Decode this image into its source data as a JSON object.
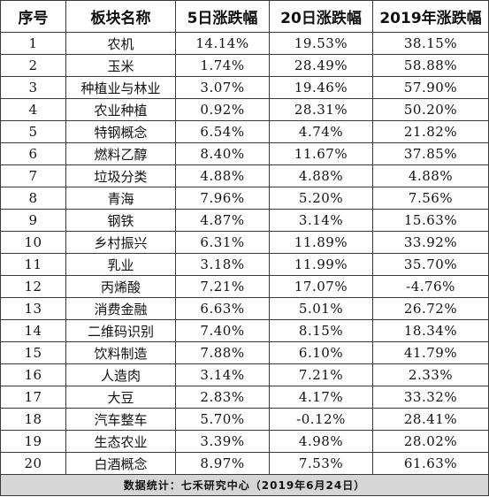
{
  "table": {
    "headers": [
      "序号",
      "板块名称",
      "5日涨跌幅",
      "20日涨跌幅",
      "2019年涨跌幅"
    ],
    "rows": [
      [
        "1",
        "农机",
        "14.14%",
        "19.53%",
        "38.15%"
      ],
      [
        "2",
        "玉米",
        "1.74%",
        "28.49%",
        "58.88%"
      ],
      [
        "3",
        "种植业与林业",
        "3.07%",
        "19.46%",
        "57.90%"
      ],
      [
        "4",
        "农业种植",
        "0.92%",
        "28.31%",
        "50.20%"
      ],
      [
        "5",
        "特钢概念",
        "6.54%",
        "4.74%",
        "21.82%"
      ],
      [
        "6",
        "燃料乙醇",
        "8.40%",
        "11.67%",
        "37.85%"
      ],
      [
        "7",
        "垃圾分类",
        "4.88%",
        "4.88%",
        "4.88%"
      ],
      [
        "8",
        "青海",
        "7.96%",
        "5.20%",
        "7.56%"
      ],
      [
        "9",
        "钢铁",
        "4.87%",
        "3.14%",
        "15.63%"
      ],
      [
        "10",
        "乡村振兴",
        "6.31%",
        "11.89%",
        "33.92%"
      ],
      [
        "11",
        "乳业",
        "3.18%",
        "11.99%",
        "35.70%"
      ],
      [
        "12",
        "丙烯酸",
        "7.21%",
        "17.07%",
        "-4.76%"
      ],
      [
        "13",
        "消费金融",
        "6.63%",
        "5.01%",
        "26.72%"
      ],
      [
        "14",
        "二维码识别",
        "7.40%",
        "8.15%",
        "18.34%"
      ],
      [
        "15",
        "饮料制造",
        "7.88%",
        "6.10%",
        "41.79%"
      ],
      [
        "16",
        "人造肉",
        "3.14%",
        "7.21%",
        "2.33%"
      ],
      [
        "17",
        "大豆",
        "2.83%",
        "4.17%",
        "33.32%"
      ],
      [
        "18",
        "汽车整车",
        "5.70%",
        "-0.12%",
        "28.41%"
      ],
      [
        "19",
        "生态农业",
        "3.39%",
        "4.98%",
        "28.02%"
      ],
      [
        "20",
        "白酒概念",
        "8.97%",
        "7.53%",
        "61.63%"
      ]
    ],
    "footer": "数据统计：七禾研究中心（2019年6月24日）"
  }
}
